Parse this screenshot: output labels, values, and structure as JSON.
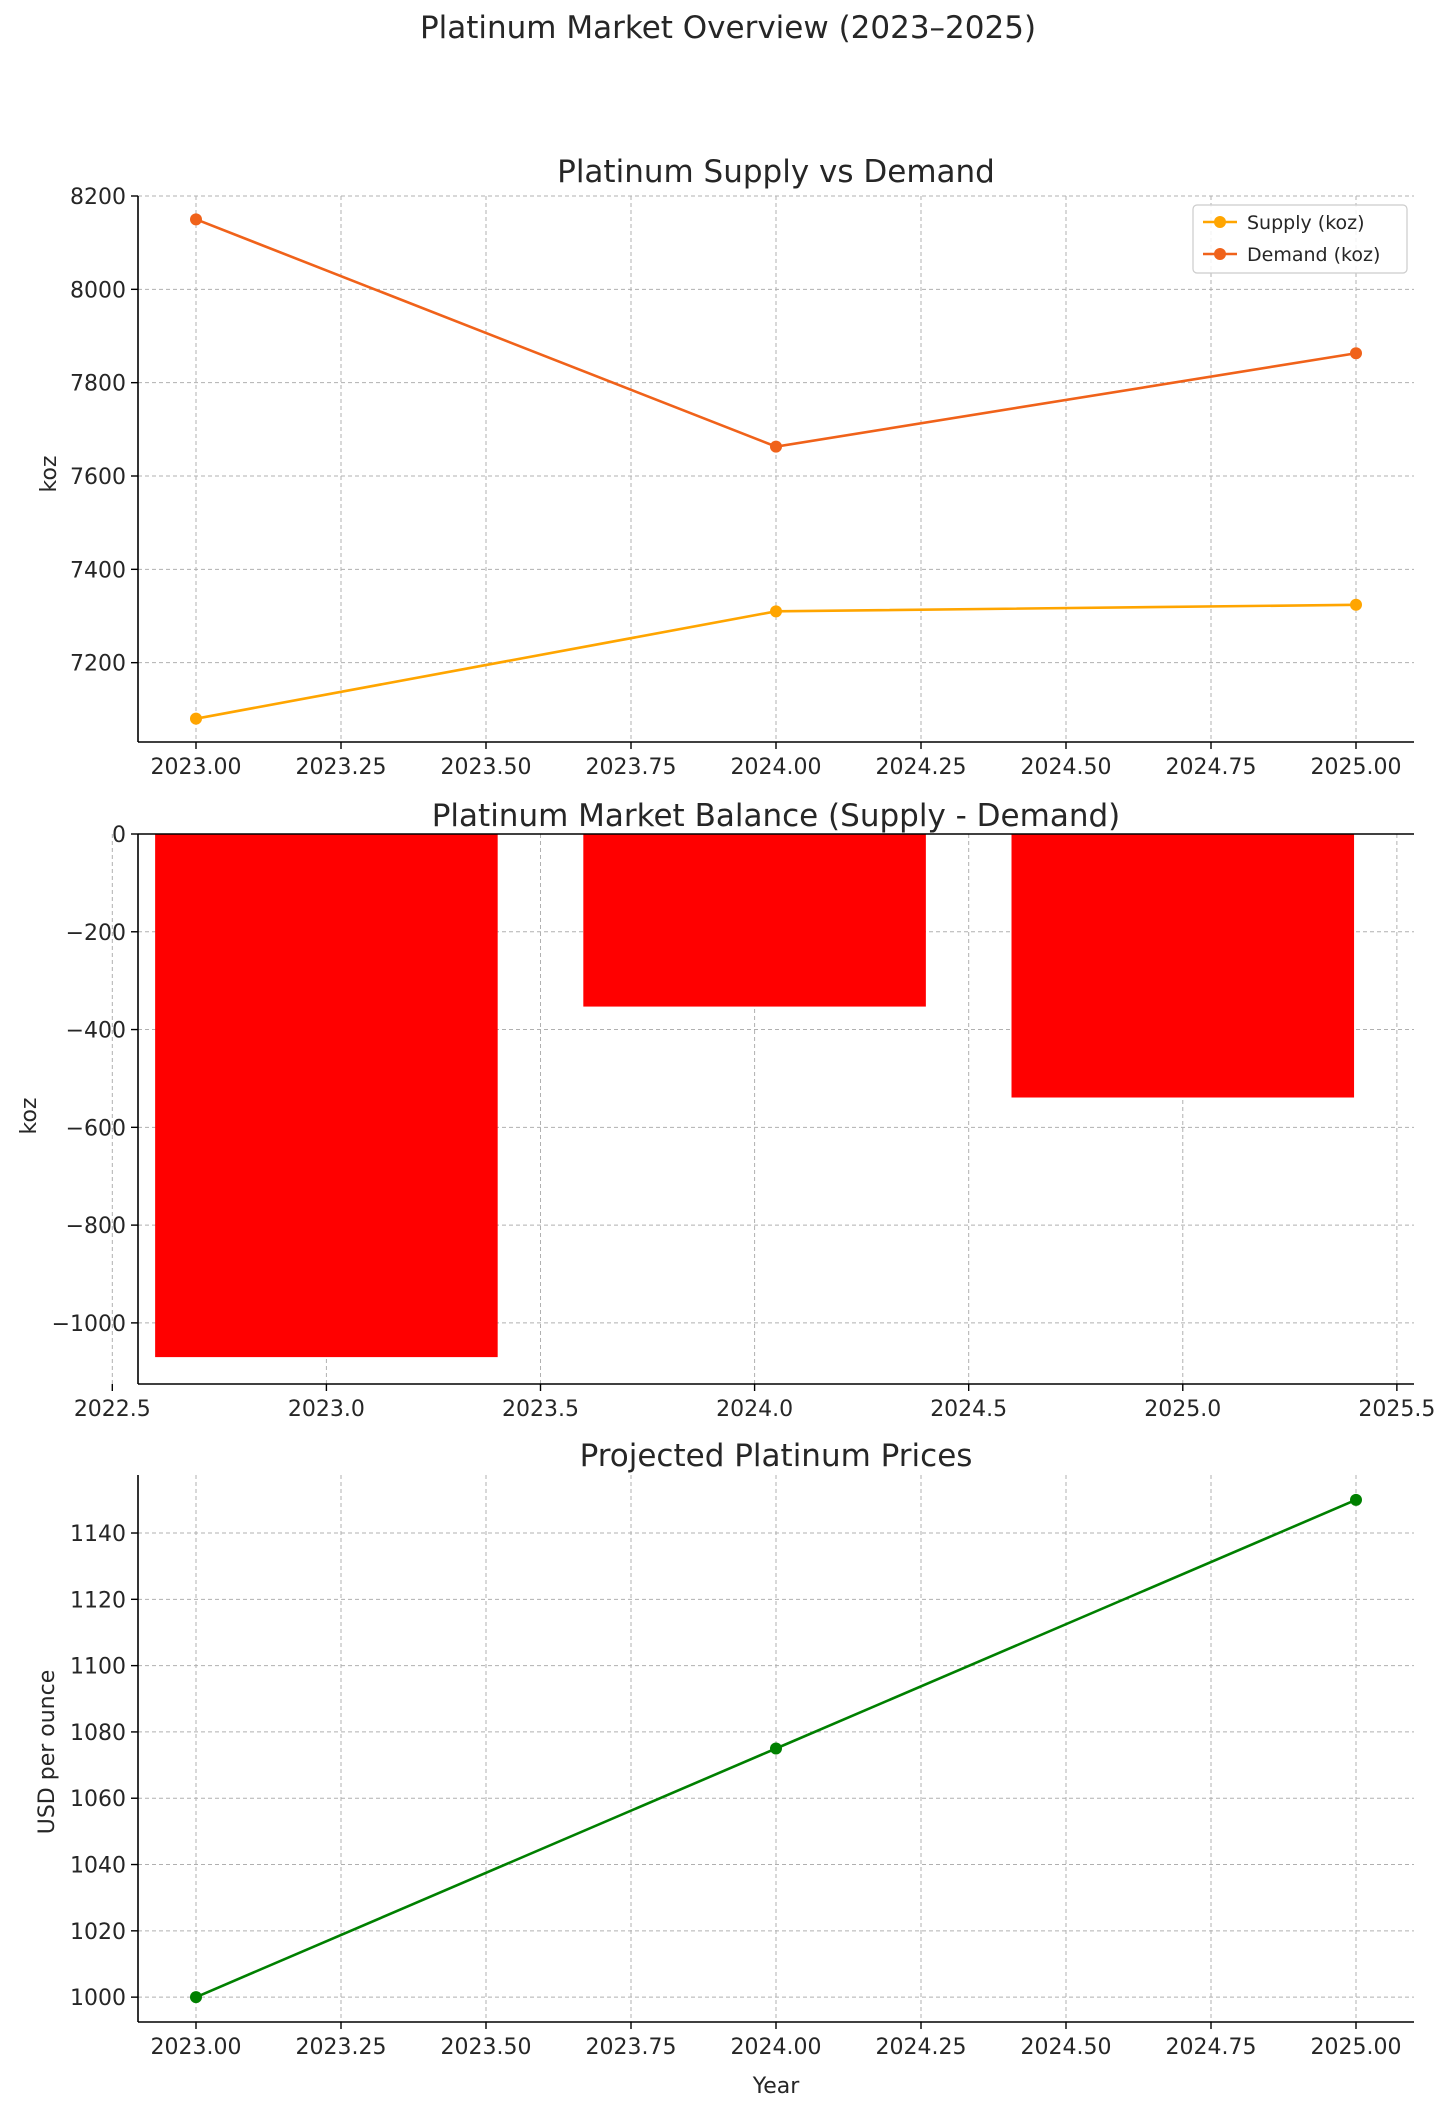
{
  "figure": {
    "suptitle": "Platinum Market Overview (2023–2025)"
  },
  "chart_data": [
    {
      "type": "line",
      "title": "Platinum Supply vs Demand",
      "xlabel": "",
      "ylabel": "koz",
      "x": [
        2023,
        2024,
        2025
      ],
      "xlim": [
        2022.9,
        2025.1
      ],
      "ylim": [
        7030,
        8200
      ],
      "xticks": [
        "2023.00",
        "2023.25",
        "2023.50",
        "2023.75",
        "2024.00",
        "2024.25",
        "2024.50",
        "2024.75",
        "2025.00"
      ],
      "yticks": [
        "7200",
        "7400",
        "7600",
        "7800",
        "8000",
        "8200"
      ],
      "grid": true,
      "legend_position": "top-right",
      "series": [
        {
          "name": "Supply (koz)",
          "values": [
            7080,
            7310,
            7324
          ],
          "color": "#FFA500",
          "marker": "circle"
        },
        {
          "name": "Demand (koz)",
          "values": [
            8150,
            7663,
            7863
          ],
          "color": "#F0621A",
          "marker": "circle"
        }
      ]
    },
    {
      "type": "bar",
      "title": "Platinum Market Balance (Supply - Demand)",
      "xlabel": "",
      "ylabel": "koz",
      "categories": [
        2023,
        2024,
        2025
      ],
      "values": [
        -1070,
        -353,
        -539
      ],
      "bar_width": 0.8,
      "color": "#FF0000",
      "xlim": [
        2022.56,
        2025.54
      ],
      "ylim": [
        -1125,
        0
      ],
      "xticks": [
        "2022.5",
        "2023.0",
        "2023.5",
        "2024.0",
        "2024.5",
        "2025.0",
        "2025.5"
      ],
      "yticks": [
        "0",
        "−200",
        "−400",
        "−600",
        "−800",
        "−1000"
      ],
      "grid": true
    },
    {
      "type": "line",
      "title": "Projected Platinum Prices",
      "xlabel": "Year",
      "ylabel": "USD per ounce",
      "x": [
        2023,
        2024,
        2025
      ],
      "xlim": [
        2022.9,
        2025.1
      ],
      "ylim": [
        992.5,
        1157.5
      ],
      "xticks": [
        "2023.00",
        "2023.25",
        "2023.50",
        "2023.75",
        "2024.00",
        "2024.25",
        "2024.50",
        "2024.75",
        "2025.00"
      ],
      "yticks": [
        "1000",
        "1020",
        "1040",
        "1060",
        "1080",
        "1100",
        "1120",
        "1140"
      ],
      "grid": true,
      "series": [
        {
          "values": [
            1000,
            1075,
            1150
          ],
          "color": "#008000",
          "marker": "circle"
        }
      ]
    }
  ]
}
